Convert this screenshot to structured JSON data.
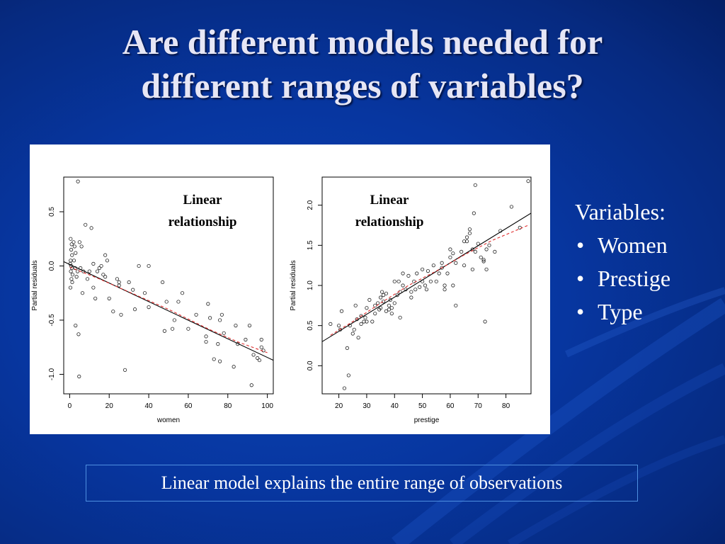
{
  "slide": {
    "title_line1": "Are different models needed for",
    "title_line2": "different ranges of variables?",
    "variables_heading": "Variables:",
    "variables": [
      "Women",
      "Prestige",
      "Type"
    ],
    "caption": "Linear model explains the entire range of observations",
    "colors": {
      "background": "#0736a0",
      "title": "#e6e6f5",
      "caption_border": "#4e8fe0",
      "smooth_line": "#e03030"
    }
  },
  "chart_data": [
    {
      "type": "scatter",
      "annotation_line1": "Linear",
      "annotation_line2": "relationship",
      "xlabel": "women",
      "ylabel": "Partial residuals",
      "xlim": [
        -3,
        103
      ],
      "ylim": [
        -1.18,
        0.82
      ],
      "x_ticks": [
        0,
        20,
        40,
        60,
        80,
        100
      ],
      "x_tick_labels": [
        "0",
        "20",
        "40",
        "60",
        "80",
        "100"
      ],
      "y_ticks": [
        -1.0,
        -0.5,
        0.0,
        0.5
      ],
      "y_tick_labels": [
        "-1.0",
        "-0.5",
        "0.0",
        "0.5"
      ],
      "fit_line": [
        [
          -3,
          0.04
        ],
        [
          103,
          -0.87
        ]
      ],
      "smooth_line": [
        [
          0,
          -0.01
        ],
        [
          15,
          -0.12
        ],
        [
          30,
          -0.24
        ],
        [
          50,
          -0.4
        ],
        [
          70,
          -0.58
        ],
        [
          85,
          -0.7
        ],
        [
          100,
          -0.8
        ]
      ],
      "points": [
        [
          0.5,
          0.25
        ],
        [
          1,
          0.2
        ],
        [
          0.8,
          0.15
        ],
        [
          1.2,
          0.1
        ],
        [
          0.5,
          0.05
        ],
        [
          0.3,
          0.02
        ],
        [
          0.7,
          0.0
        ],
        [
          1.1,
          -0.02
        ],
        [
          0.6,
          -0.05
        ],
        [
          1.5,
          -0.08
        ],
        [
          0.9,
          -0.12
        ],
        [
          1.3,
          -0.15
        ],
        [
          0.4,
          -0.2
        ],
        [
          2,
          0.22
        ],
        [
          2.5,
          0.18
        ],
        [
          3,
          0.12
        ],
        [
          2.2,
          0.05
        ],
        [
          2.8,
          -0.02
        ],
        [
          3.5,
          -0.1
        ],
        [
          4,
          -0.05
        ],
        [
          4.2,
          0.78
        ],
        [
          5,
          0.22
        ],
        [
          6,
          0.18
        ],
        [
          5.5,
          -0.02
        ],
        [
          7,
          -0.05
        ],
        [
          6.5,
          -0.25
        ],
        [
          3,
          -0.55
        ],
        [
          4.5,
          -0.63
        ],
        [
          4.8,
          -1.02
        ],
        [
          8,
          0.38
        ],
        [
          9,
          -0.12
        ],
        [
          10,
          -0.05
        ],
        [
          11,
          0.35
        ],
        [
          12,
          -0.2
        ],
        [
          12,
          0.02
        ],
        [
          13,
          -0.3
        ],
        [
          14,
          -0.05
        ],
        [
          15,
          -0.02
        ],
        [
          16,
          0.0
        ],
        [
          17,
          -0.08
        ],
        [
          18,
          0.1
        ],
        [
          18,
          -0.1
        ],
        [
          19,
          0.05
        ],
        [
          20,
          -0.3
        ],
        [
          22,
          -0.42
        ],
        [
          24,
          -0.12
        ],
        [
          25,
          -0.15
        ],
        [
          25,
          -0.18
        ],
        [
          26,
          -0.45
        ],
        [
          28,
          -0.96
        ],
        [
          30,
          -0.15
        ],
        [
          32,
          -0.22
        ],
        [
          33,
          -0.4
        ],
        [
          35,
          0.0
        ],
        [
          38,
          -0.25
        ],
        [
          40,
          0.0
        ],
        [
          40,
          -0.38
        ],
        [
          47,
          -0.15
        ],
        [
          48,
          -0.6
        ],
        [
          49,
          -0.33
        ],
        [
          52,
          -0.58
        ],
        [
          53,
          -0.5
        ],
        [
          55,
          -0.33
        ],
        [
          57,
          -0.25
        ],
        [
          60,
          -0.58
        ],
        [
          64,
          -0.45
        ],
        [
          69,
          -0.65
        ],
        [
          69,
          -0.7
        ],
        [
          70,
          -0.35
        ],
        [
          71,
          -0.48
        ],
        [
          73,
          -0.86
        ],
        [
          75,
          -0.72
        ],
        [
          76,
          -0.5
        ],
        [
          76,
          -0.88
        ],
        [
          77,
          -0.45
        ],
        [
          78,
          -0.62
        ],
        [
          83,
          -0.93
        ],
        [
          84,
          -0.55
        ],
        [
          85,
          -0.72
        ],
        [
          89,
          -0.68
        ],
        [
          91,
          -0.55
        ],
        [
          92,
          -1.1
        ],
        [
          93,
          -0.82
        ],
        [
          95,
          -0.85
        ],
        [
          96,
          -0.87
        ],
        [
          97,
          -0.68
        ],
        [
          97,
          -0.75
        ],
        [
          98,
          -0.78
        ]
      ]
    },
    {
      "type": "scatter",
      "annotation_line1": "Linear",
      "annotation_line2": "relationship",
      "xlabel": "prestige",
      "ylabel": "Partial residuals",
      "xlim": [
        14,
        89
      ],
      "ylim": [
        -0.35,
        2.35
      ],
      "x_ticks": [
        20,
        30,
        40,
        50,
        60,
        70,
        80
      ],
      "x_tick_labels": [
        "20",
        "30",
        "40",
        "50",
        "60",
        "70",
        "80"
      ],
      "y_ticks": [
        0.0,
        0.5,
        1.0,
        1.5,
        2.0
      ],
      "y_tick_labels": [
        "0.0",
        "0.5",
        "1.0",
        "1.5",
        "2.0"
      ],
      "fit_line": [
        [
          14,
          0.3
        ],
        [
          89,
          1.9
        ]
      ],
      "smooth_line": [
        [
          17,
          0.38
        ],
        [
          25,
          0.55
        ],
        [
          35,
          0.78
        ],
        [
          45,
          1.0
        ],
        [
          55,
          1.18
        ],
        [
          65,
          1.38
        ],
        [
          75,
          1.56
        ],
        [
          88,
          1.75
        ]
      ],
      "points": [
        [
          17,
          0.52
        ],
        [
          20,
          0.5
        ],
        [
          20.5,
          0.45
        ],
        [
          21,
          0.68
        ],
        [
          22,
          -0.28
        ],
        [
          23,
          0.22
        ],
        [
          23.5,
          -0.12
        ],
        [
          24,
          0.5
        ],
        [
          25,
          0.4
        ],
        [
          25.5,
          0.45
        ],
        [
          26,
          0.75
        ],
        [
          26.5,
          0.58
        ],
        [
          27,
          0.35
        ],
        [
          28,
          0.52
        ],
        [
          28,
          0.62
        ],
        [
          29,
          0.55
        ],
        [
          29.5,
          0.6
        ],
        [
          30,
          0.72
        ],
        [
          30,
          0.55
        ],
        [
          31,
          0.82
        ],
        [
          32,
          0.55
        ],
        [
          33,
          0.65
        ],
        [
          33,
          0.75
        ],
        [
          34,
          0.78
        ],
        [
          34.5,
          0.7
        ],
        [
          35,
          0.72
        ],
        [
          35,
          0.85
        ],
        [
          35.5,
          0.92
        ],
        [
          36,
          0.8
        ],
        [
          36,
          0.88
        ],
        [
          37,
          0.68
        ],
        [
          37,
          0.9
        ],
        [
          38,
          0.75
        ],
        [
          38,
          0.7
        ],
        [
          38.5,
          0.82
        ],
        [
          39,
          0.65
        ],
        [
          39,
          0.72
        ],
        [
          40,
          1.05
        ],
        [
          40,
          0.78
        ],
        [
          41,
          0.88
        ],
        [
          41.5,
          1.05
        ],
        [
          42,
          0.92
        ],
        [
          42,
          0.6
        ],
        [
          43,
          1.15
        ],
        [
          43,
          1.0
        ],
        [
          44,
          0.95
        ],
        [
          45,
          1.12
        ],
        [
          46,
          0.92
        ],
        [
          46,
          0.85
        ],
        [
          47,
          1.05
        ],
        [
          47.5,
          0.95
        ],
        [
          48,
          1.15
        ],
        [
          49,
          0.98
        ],
        [
          50,
          1.2
        ],
        [
          50,
          1.05
        ],
        [
          51,
          1.0
        ],
        [
          51.5,
          0.95
        ],
        [
          52,
          1.18
        ],
        [
          53,
          1.05
        ],
        [
          54,
          1.25
        ],
        [
          55,
          1.05
        ],
        [
          56,
          1.15
        ],
        [
          57,
          1.22
        ],
        [
          57,
          1.28
        ],
        [
          58,
          1.0
        ],
        [
          58,
          0.95
        ],
        [
          59,
          1.15
        ],
        [
          60,
          1.35
        ],
        [
          60,
          1.45
        ],
        [
          61,
          1.4
        ],
        [
          61,
          1.0
        ],
        [
          62,
          1.28
        ],
        [
          62,
          0.75
        ],
        [
          64,
          1.42
        ],
        [
          65,
          1.55
        ],
        [
          65,
          1.25
        ],
        [
          66,
          1.6
        ],
        [
          66,
          1.55
        ],
        [
          67,
          1.7
        ],
        [
          67,
          1.65
        ],
        [
          68,
          1.45
        ],
        [
          68,
          1.2
        ],
        [
          68.5,
          1.9
        ],
        [
          69,
          2.25
        ],
        [
          69,
          1.42
        ],
        [
          70,
          1.52
        ],
        [
          71,
          1.35
        ],
        [
          72,
          1.32
        ],
        [
          72,
          1.3
        ],
        [
          72.5,
          0.55
        ],
        [
          73,
          1.2
        ],
        [
          73,
          1.45
        ],
        [
          74,
          1.5
        ],
        [
          76,
          1.42
        ],
        [
          78,
          1.68
        ],
        [
          82,
          1.98
        ],
        [
          85,
          1.72
        ],
        [
          88,
          2.3
        ]
      ]
    }
  ]
}
